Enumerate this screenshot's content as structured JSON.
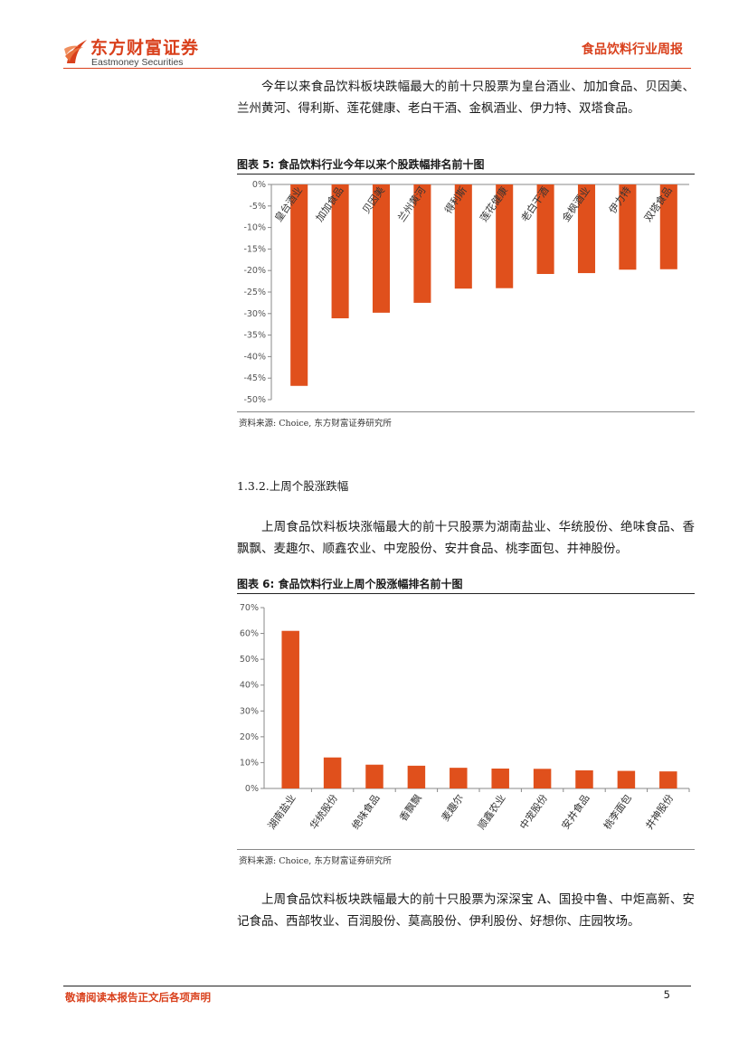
{
  "header": {
    "logo_cn": "东方财富证券",
    "logo_en": "Eastmoney Securities",
    "report_title": "食品饮料行业周报"
  },
  "paragraphs": {
    "p1": "今年以来食品饮料板块跌幅最大的前十只股票为皇台酒业、加加食品、贝因美、兰州黄河、得利斯、莲花健康、老白干酒、金枫酒业、伊力特、双塔食品。",
    "p2": "上周食品饮料板块涨幅最大的前十只股票为湖南盐业、华统股份、绝味食品、香飘飘、麦趣尔、顺鑫农业、中宠股份、安井食品、桃李面包、井神股份。",
    "p3": "上周食品饮料板块跌幅最大的前十只股票为深深宝 A、国投中鲁、中炬高新、安记食品、西部牧业、百润股份、莫高股份、伊利股份、好想你、庄园牧场。"
  },
  "section_heading": "1.3.2.上周个股涨跌幅",
  "figures": {
    "fig5_title": "图表 5: 食品饮料行业今年以来个股跌幅排名前十图",
    "fig6_title": "图表 6: 食品饮料行业上周个股涨幅排名前十图",
    "source5": "资料来源: Choice, 东方财富证券研究所",
    "source6": "资料来源: Choice, 东方财富证券研究所"
  },
  "footer": {
    "disclaimer": "敬请阅读本报告正文后各项声明",
    "page_number": "5"
  },
  "colors": {
    "accent": "#d9401c",
    "bar": "#e0501c"
  },
  "chart_data": [
    {
      "type": "bar",
      "title": "食品饮料行业今年以来个股跌幅排名前十图",
      "categories": [
        "皇台酒业",
        "加加食品",
        "贝因美",
        "兰州黄河",
        "得利斯",
        "莲花健康",
        "老白干酒",
        "金枫酒业",
        "伊力特",
        "双塔食品"
      ],
      "values": [
        -46.8,
        -31.1,
        -29.8,
        -27.5,
        -24.2,
        -24.1,
        -20.8,
        -20.6,
        -19.8,
        -19.7
      ],
      "ylim": [
        -50,
        0
      ],
      "yticks": [
        0,
        -5,
        -10,
        -15,
        -20,
        -25,
        -30,
        -35,
        -40,
        -45,
        -50
      ],
      "ytick_labels": [
        "0%",
        "-5%",
        "-10%",
        "-15%",
        "-20%",
        "-25%",
        "-30%",
        "-35%",
        "-40%",
        "-45%",
        "-50%"
      ],
      "xlabel": "",
      "ylabel": "",
      "grid": false
    },
    {
      "type": "bar",
      "title": "食品饮料行业上周个股涨幅排名前十图",
      "categories": [
        "湖南盐业",
        "华统股份",
        "绝味食品",
        "香飘飘",
        "麦趣尔",
        "顺鑫农业",
        "中宠股份",
        "安井食品",
        "桃李面包",
        "井神股份"
      ],
      "values": [
        61.0,
        12.0,
        9.2,
        8.8,
        8.0,
        7.7,
        7.6,
        7.0,
        6.8,
        6.6
      ],
      "ylim": [
        0,
        70
      ],
      "yticks": [
        0,
        10,
        20,
        30,
        40,
        50,
        60,
        70
      ],
      "ytick_labels": [
        "0%",
        "10%",
        "20%",
        "30%",
        "40%",
        "50%",
        "60%",
        "70%"
      ],
      "xlabel": "",
      "ylabel": "",
      "grid": false
    }
  ]
}
